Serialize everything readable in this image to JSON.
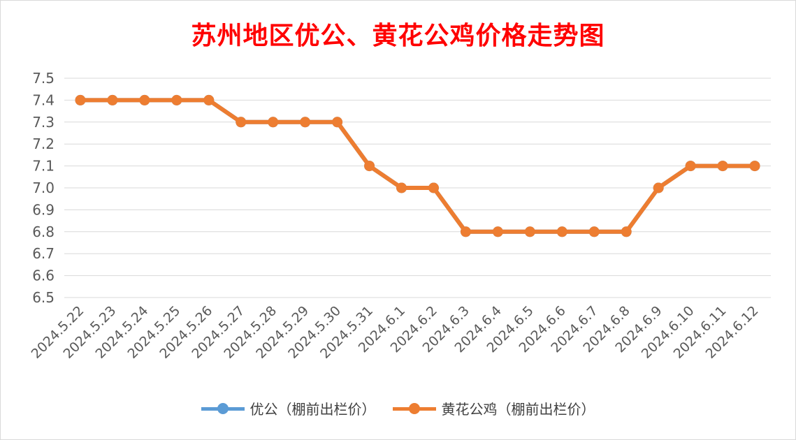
{
  "chart_data": {
    "type": "line",
    "title": "苏州地区优公、黄花公鸡价格走势图",
    "xlabel": "",
    "ylabel": "",
    "ylim": [
      6.5,
      7.5
    ],
    "yticks": [
      "7.5",
      "7.4",
      "7.3",
      "7.2",
      "7.1",
      "7.0",
      "6.9",
      "6.8",
      "6.7",
      "6.6",
      "6.5"
    ],
    "grid": true,
    "legend_position": "bottom",
    "categories": [
      "2024.5.22",
      "2024.5.23",
      "2024.5.24",
      "2024.5.25",
      "2024.5.26",
      "2024.5.27",
      "2024.5.28",
      "2024.5.29",
      "2024.5.30",
      "2024.5.31",
      "2024.6.1",
      "2024.6.2",
      "2024.6.3",
      "2024.6.4",
      "2024.6.5",
      "2024.6.6",
      "2024.6.7",
      "2024.6.8",
      "2024.6.9",
      "2024.6.10",
      "2024.6.11",
      "2024.6.12"
    ],
    "series": [
      {
        "name": "优公（棚前出栏价）",
        "color": "#5b9bd5",
        "values": [
          7.4,
          7.4,
          7.4,
          7.4,
          7.4,
          7.3,
          7.3,
          7.3,
          7.3,
          7.1,
          7.0,
          7.0,
          6.8,
          6.8,
          6.8,
          6.8,
          6.8,
          6.8,
          7.0,
          7.1,
          7.1,
          7.1
        ]
      },
      {
        "name": "黄花公鸡（棚前出栏价）",
        "color": "#ed7d31",
        "values": [
          7.4,
          7.4,
          7.4,
          7.4,
          7.4,
          7.3,
          7.3,
          7.3,
          7.3,
          7.1,
          7.0,
          7.0,
          6.8,
          6.8,
          6.8,
          6.8,
          6.8,
          6.8,
          7.0,
          7.1,
          7.1,
          7.1
        ]
      }
    ]
  }
}
